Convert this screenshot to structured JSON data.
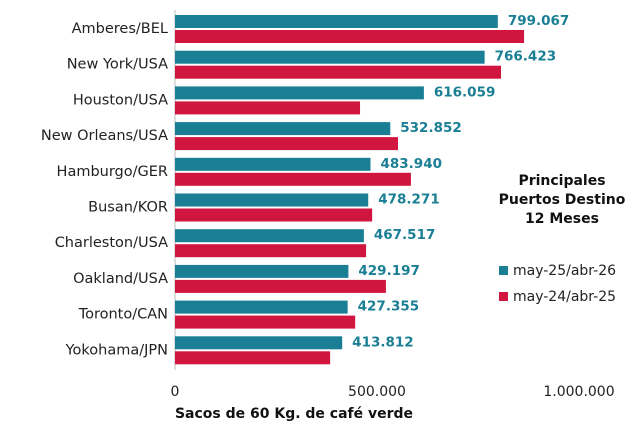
{
  "chart_data": {
    "type": "bar",
    "orientation": "horizontal",
    "legend_title": "Principales Puertos Destino 12 Meses",
    "xlabel": "Sacos de 60 Kg. de café verde",
    "categories": [
      "Amberes/BEL",
      "New York/USA",
      "Houston/USA",
      "New Orleans/USA",
      "Hamburgo/GER",
      "Busan/KOR",
      "Charleston/USA",
      "Oakland/USA",
      "Toronto/CAN",
      "Yokohama/JPN"
    ],
    "series": [
      {
        "name": "may-25/abr-26",
        "color": "#1a7f94",
        "values": [
          799067,
          766423,
          616059,
          532852,
          483940,
          478271,
          467517,
          429197,
          427355,
          413812
        ],
        "value_labels": [
          "799.067",
          "766.423",
          "616.059",
          "532.852",
          "483.940",
          "478.271",
          "467.517",
          "429.197",
          "427.355",
          "413.812"
        ]
      },
      {
        "name": "may-24/abr-25",
        "color": "#d0163f",
        "values": [
          864000,
          807000,
          458000,
          552000,
          584000,
          488000,
          473000,
          522000,
          446000,
          384000
        ]
      }
    ],
    "xlim": [
      0,
      1000000
    ],
    "xticks": [
      0,
      {
        "value": 500000,
        "label": "500.000"
      },
      {
        "value": 1000000,
        "label": "1.000.000"
      }
    ]
  }
}
